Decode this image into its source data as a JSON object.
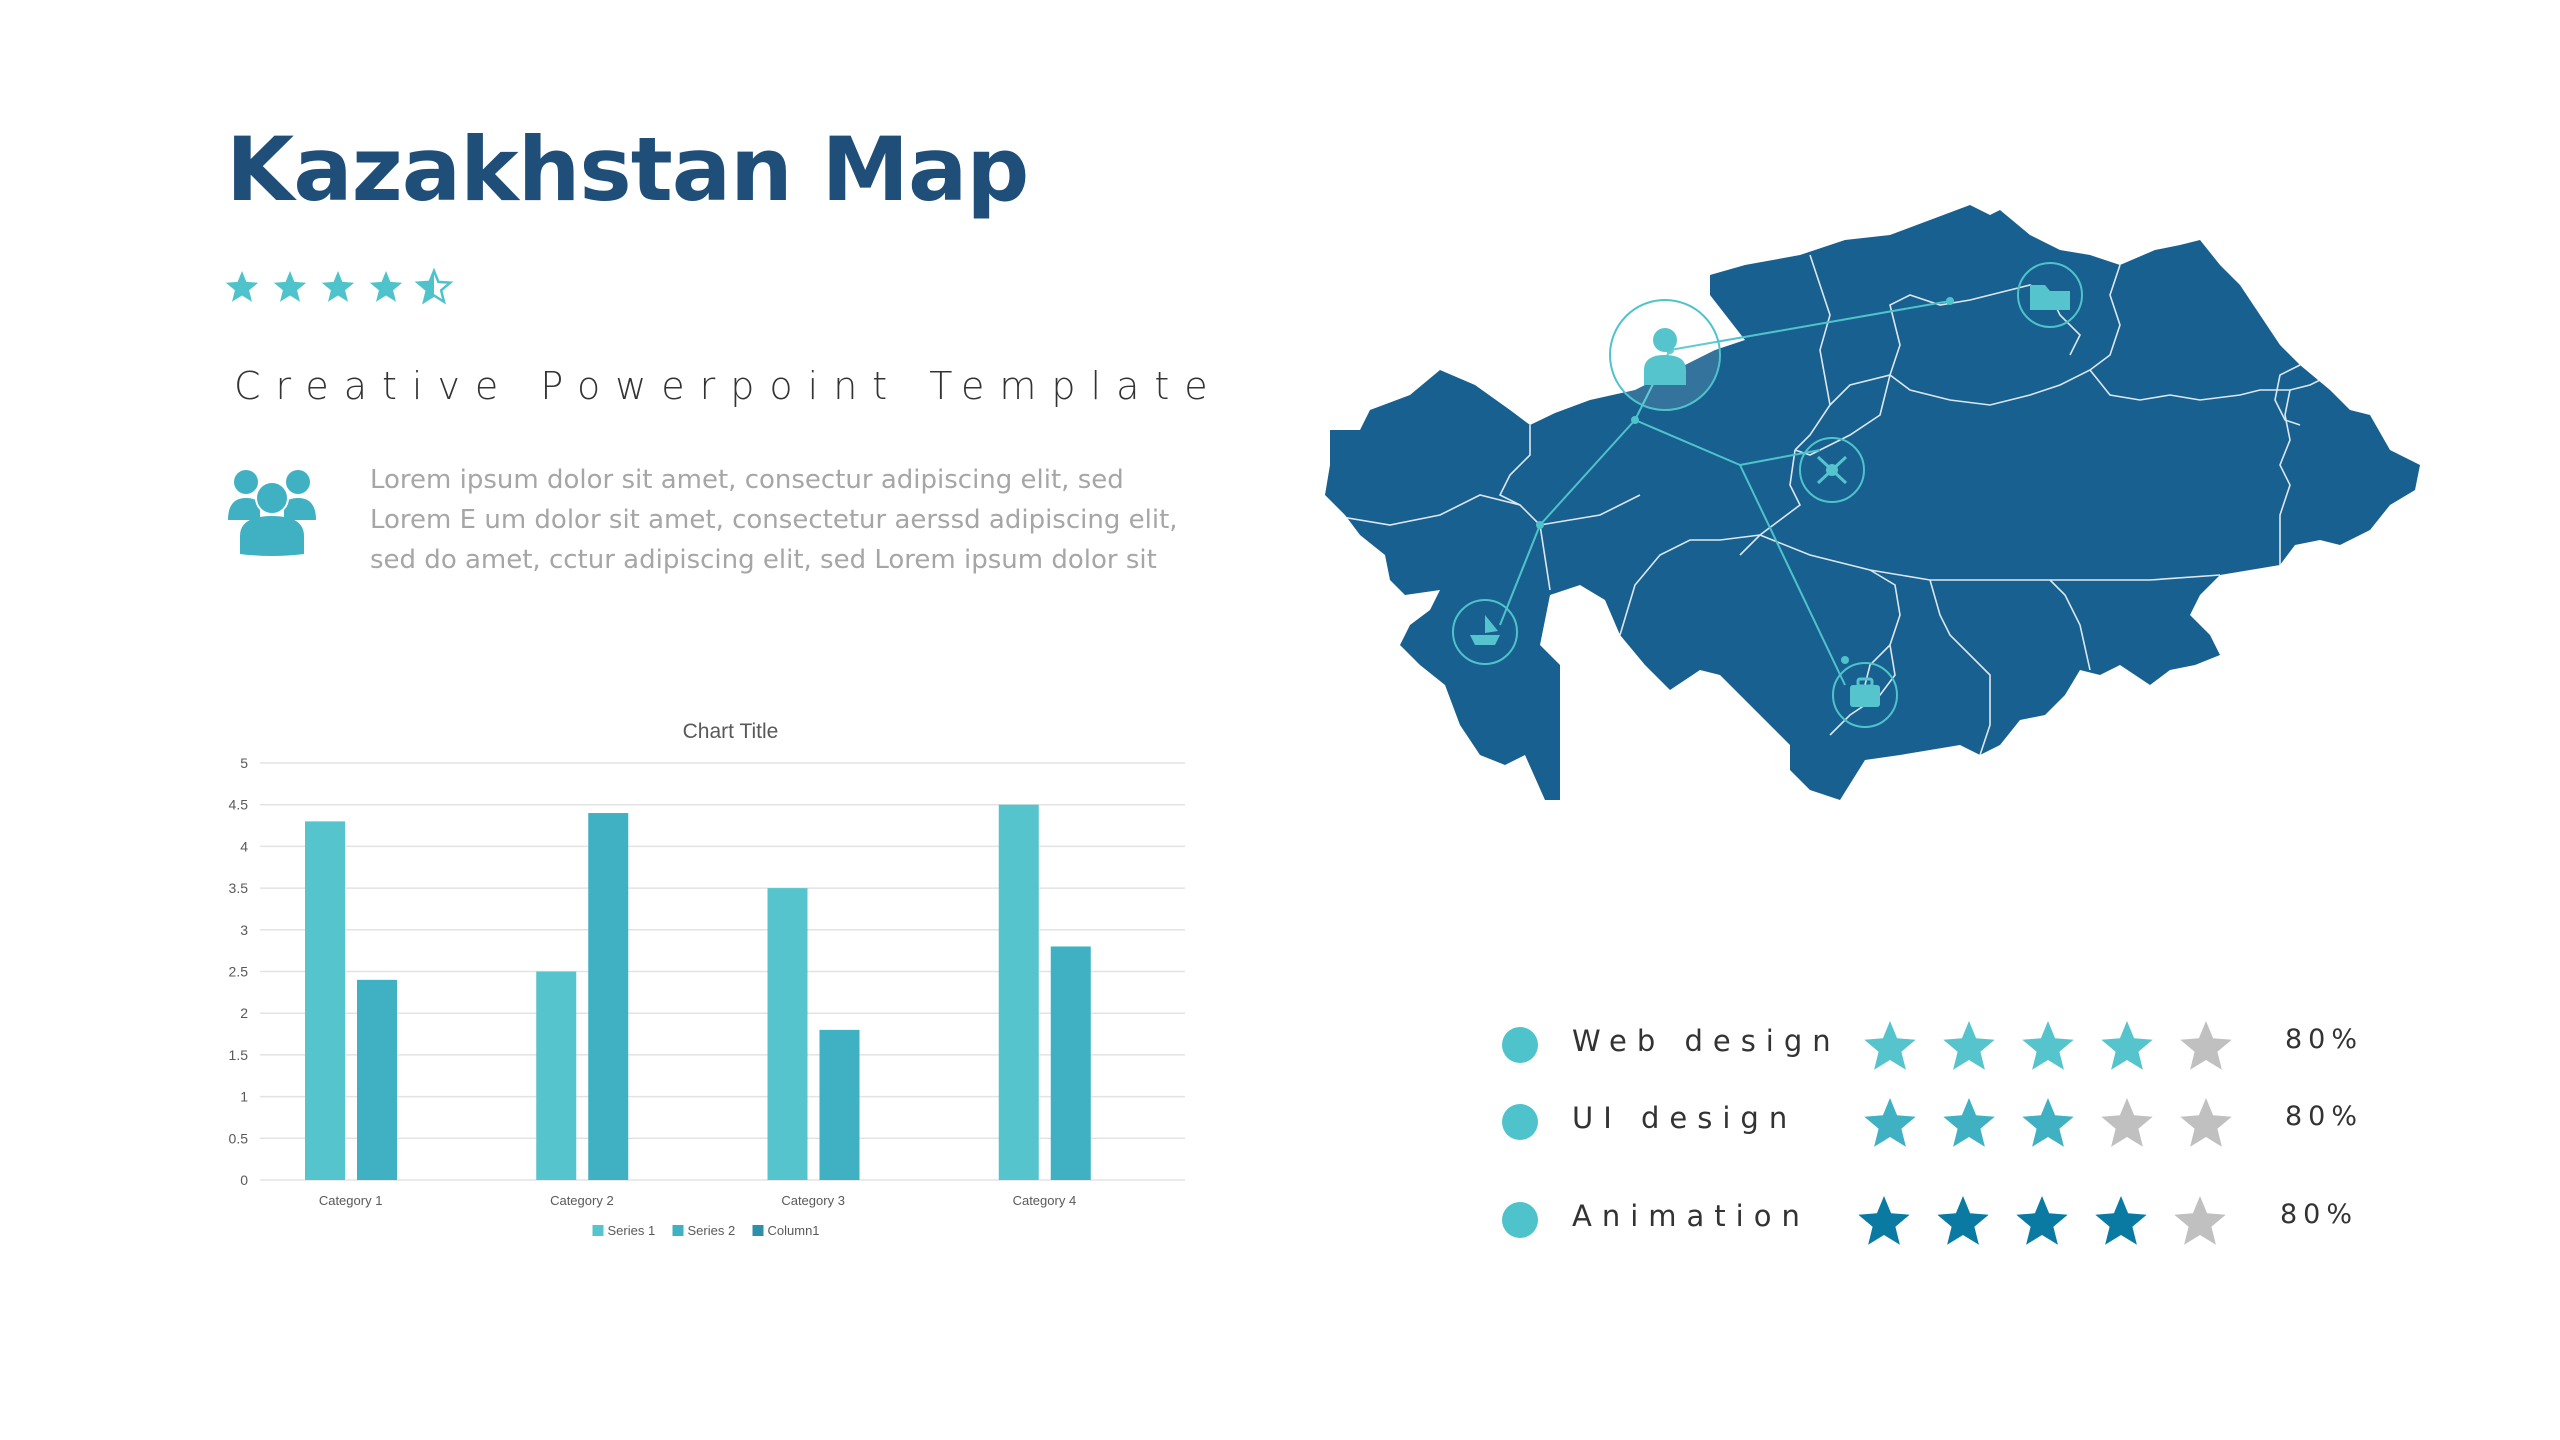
{
  "slide": {
    "title": "Kazakhstan Map",
    "subtitle": "Creative Powerpoint Template",
    "title_rating": 4.5,
    "body": "Lorem ipsum dolor sit amet, consectur adipiscing elit, sed Lorem E um dolor sit amet, consectetur  aerssd adipiscing elit, sed do amet, cctur adipiscing elit, sed Lorem ipsum dolor sit",
    "team_icon": "team-icon"
  },
  "colors": {
    "title": "#1f4e79",
    "accent": "#4fc3cb",
    "accent_dark": "#0a7aa3",
    "map": "#18608f",
    "star_inactive": "#c0c0c0",
    "series1": "#56c4cc",
    "series2": "#3fb1c3"
  },
  "chart_data": {
    "type": "bar",
    "title": "Chart Title",
    "categories": [
      "Category 1",
      "Category 2",
      "Category 3",
      "Category 4"
    ],
    "series": [
      {
        "name": "Series 1",
        "values": [
          4.3,
          2.5,
          3.5,
          4.5
        ]
      },
      {
        "name": "Series 2",
        "values": [
          2.4,
          4.4,
          1.8,
          2.8
        ]
      },
      {
        "name": "Column1",
        "values": [
          0,
          0,
          0,
          0
        ]
      }
    ],
    "yticks": [
      "0",
      "0.5",
      "1",
      "1.5",
      "2",
      "2.5",
      "3",
      "3.5",
      "4",
      "4.5",
      "5"
    ],
    "ylim": [
      0,
      5
    ],
    "grid": true,
    "legend": "bottom"
  },
  "map": {
    "region": "Kazakhstan",
    "markers": [
      "user-icon",
      "folder-icon",
      "network-icon",
      "ship-icon",
      "briefcase-icon"
    ]
  },
  "ratings": [
    {
      "label": "Web design",
      "stars": 4,
      "percent": "80%"
    },
    {
      "label": "UI design",
      "stars": 3,
      "percent": "80%"
    },
    {
      "label": "Animation",
      "stars": 4,
      "percent": "80%"
    }
  ]
}
